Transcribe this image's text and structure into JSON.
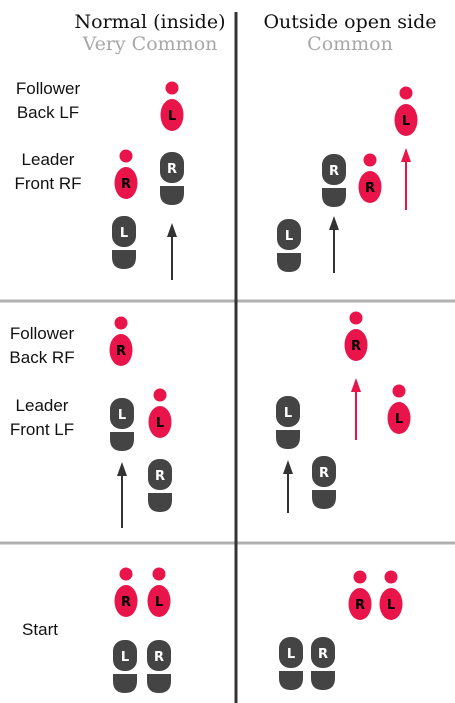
{
  "columns": [
    {
      "title": "Normal (inside)",
      "frequency": "Very Common"
    },
    {
      "title": "Outside open side",
      "frequency": "Common"
    }
  ],
  "rows": [
    {
      "labels": [
        "Follower",
        "Back LF",
        "Leader",
        "Front RF"
      ]
    },
    {
      "labels": [
        "Follower",
        "Back RF",
        "Leader",
        "Front LF"
      ]
    },
    {
      "labels": [
        "Start"
      ]
    }
  ],
  "colors": {
    "follower": "#e8144a",
    "leader": "#444444",
    "arrow_follower": "#e8144a",
    "arrow_leader": "#333333",
    "divider": "#b0b0b0",
    "center_line": "#333333",
    "frequency_text": "#a8a8a8"
  },
  "foot_letters": {
    "left": "L",
    "right": "R"
  }
}
